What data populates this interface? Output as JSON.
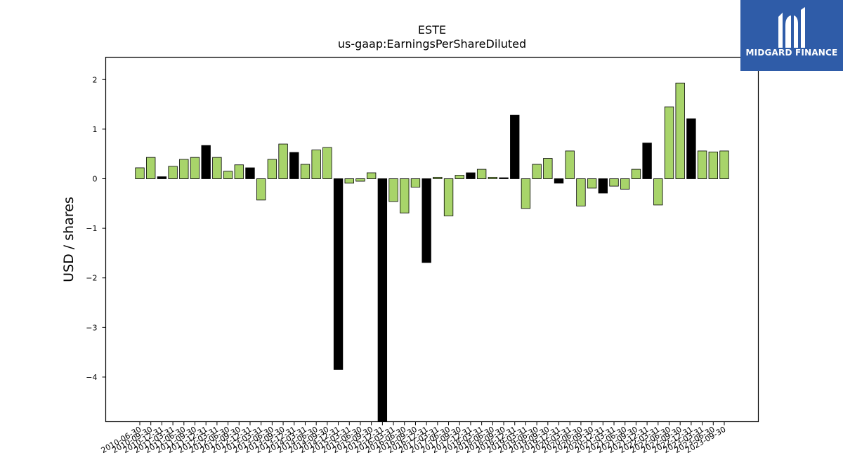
{
  "logo": {
    "text": "MIDGARD FINANCE",
    "icon": "midgard-finance-logo-icon",
    "background": "#2f5ca8"
  },
  "colors": {
    "positive_bar": "#a8d46a",
    "highlight_bar": "#000000",
    "bar_edge": "#000000"
  },
  "chart_data": {
    "type": "bar",
    "title": "ESTE",
    "subtitle": "us-gaap:EarningsPerShareDiluted",
    "ylabel": "USD / shares",
    "xlabel": "",
    "ylim": [
      -4.9,
      2.45
    ],
    "yticks": [
      2,
      1,
      0,
      -1,
      -2,
      -3,
      -4
    ],
    "ytick_labels": [
      "2",
      "1",
      "0",
      "−1",
      "−2",
      "−3",
      "−4"
    ],
    "grid": false,
    "legend": "none",
    "x_tick_labels": [
      "2010-06-30",
      "2010-09-30",
      "2010-12-31",
      "2011-03-31",
      "2011-06-30",
      "2011-09-30",
      "2011-12-31",
      "2012-03-31",
      "2012-06-30",
      "2012-09-30",
      "2012-12-31",
      "2013-03-31",
      "2013-06-30",
      "2013-09-30",
      "2013-12-31",
      "2014-03-31",
      "2014-06-30",
      "2014-09-30",
      "2014-12-31",
      "2015-03-31",
      "2015-06-30",
      "2015-09-30",
      "2015-12-31",
      "2016-03-31",
      "2016-06-30",
      "2016-09-30",
      "2016-12-31",
      "2017-03-31",
      "2017-06-30",
      "2017-09-30",
      "2017-12-31",
      "2018-03-31",
      "2018-06-30",
      "2018-09-30",
      "2018-12-31",
      "2019-03-31",
      "2019-06-30",
      "2019-09-30",
      "2019-12-31",
      "2020-03-31",
      "2020-06-30",
      "2020-09-30",
      "2020-12-31",
      "2021-03-31",
      "2021-06-30",
      "2021-09-30",
      "2021-12-31",
      "2022-03-31",
      "2022-06-30",
      "2022-09-30",
      "2022-12-31",
      "2023-03-31",
      "2023-06-30",
      "2023-09-30"
    ],
    "values": [
      0.22,
      0.43,
      0.04,
      0.25,
      0.39,
      0.43,
      0.67,
      0.43,
      0.15,
      0.28,
      0.22,
      -0.43,
      0.39,
      0.7,
      0.53,
      0.29,
      0.58,
      0.63,
      -3.85,
      -0.09,
      -0.05,
      0.12,
      -4.95,
      -0.46,
      -0.69,
      -0.17,
      -1.69,
      0.03,
      -0.75,
      0.07,
      0.12,
      0.19,
      0.03,
      0.02,
      1.28,
      -0.6,
      0.29,
      0.41,
      -0.09,
      0.56,
      -0.55,
      -0.19,
      -0.29,
      -0.15,
      -0.21,
      0.19,
      0.72,
      -0.53,
      1.45,
      1.93,
      1.21,
      0.56,
      0.54,
      0.56
    ],
    "highlight": [
      0,
      0,
      1,
      0,
      0,
      0,
      1,
      0,
      0,
      0,
      1,
      0,
      0,
      0,
      1,
      0,
      0,
      0,
      1,
      0,
      0,
      0,
      1,
      0,
      0,
      0,
      1,
      0,
      0,
      0,
      1,
      0,
      0,
      1,
      1,
      0,
      0,
      0,
      1,
      0,
      0,
      0,
      1,
      0,
      0,
      0,
      1,
      0,
      0,
      0,
      1,
      0,
      0,
      0
    ]
  }
}
